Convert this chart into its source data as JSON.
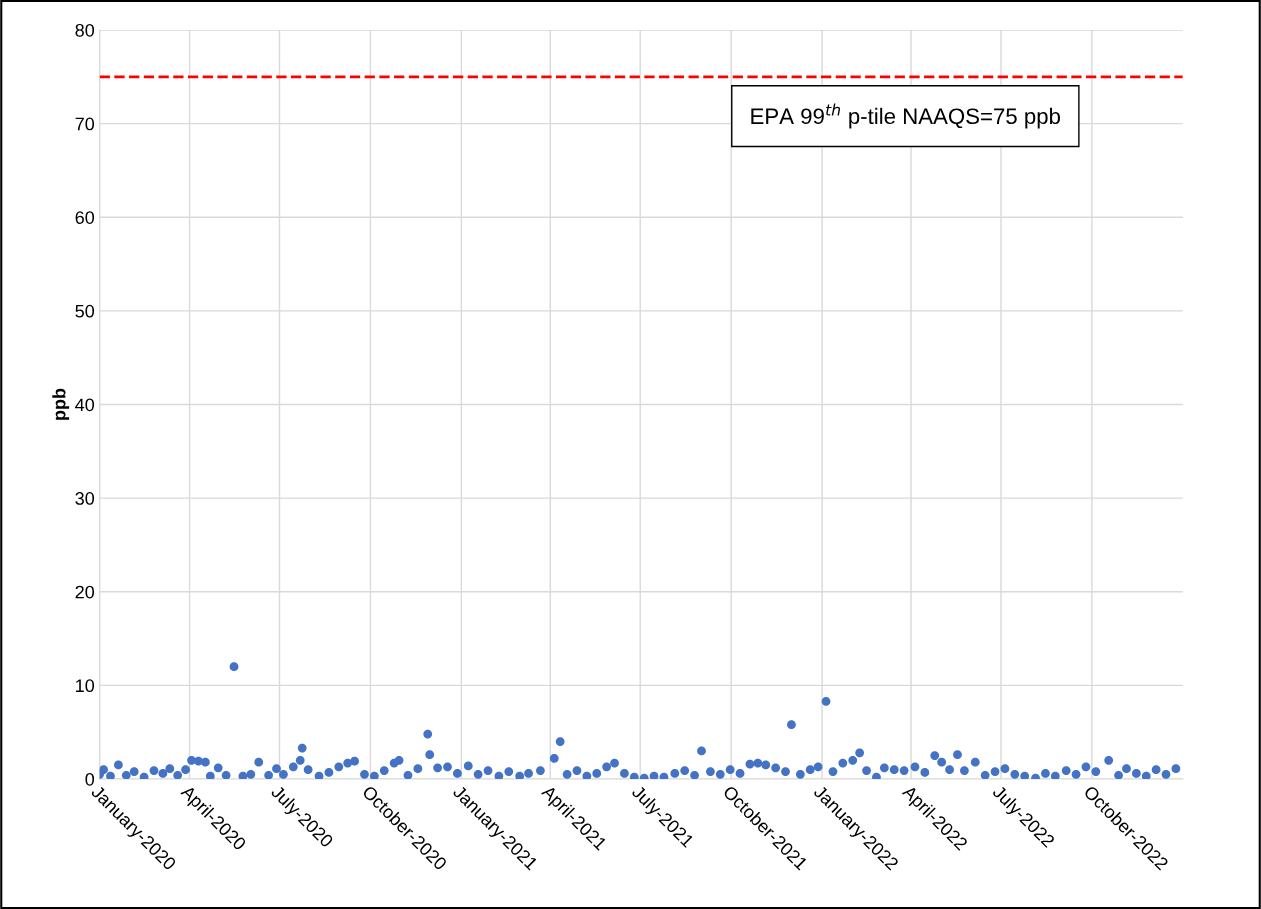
{
  "chart_data": {
    "type": "scatter",
    "ylabel": "ppb",
    "color": "#4472c4",
    "marker": "circle",
    "grid": true,
    "legend": false,
    "xlim": [
      "2020-01-01",
      "2023-01-01"
    ],
    "ylim": [
      0,
      80
    ],
    "yticks": [
      0,
      10,
      20,
      30,
      40,
      50,
      60,
      70,
      80
    ],
    "xticks": [
      {
        "value": "2020-01-01",
        "label": "January-2020"
      },
      {
        "value": "2020-04-01",
        "label": "April-2020"
      },
      {
        "value": "2020-07-01",
        "label": "July-2020"
      },
      {
        "value": "2020-10-01",
        "label": "October-2020"
      },
      {
        "value": "2021-01-01",
        "label": "January-2021"
      },
      {
        "value": "2021-04-01",
        "label": "April-2021"
      },
      {
        "value": "2021-07-01",
        "label": "July-2021"
      },
      {
        "value": "2021-10-01",
        "label": "October-2021"
      },
      {
        "value": "2022-01-01",
        "label": "January-2022"
      },
      {
        "value": "2022-04-01",
        "label": "April-2022"
      },
      {
        "value": "2022-07-01",
        "label": "July-2022"
      },
      {
        "value": "2022-10-01",
        "label": "October-2022"
      }
    ],
    "ref_lines": [
      {
        "axis": "y",
        "value": 75,
        "label": "EPA 99$^{th}$ p-tile NAAQS=75 ppb",
        "color": "#ff0000",
        "line_style": "dashed"
      }
    ],
    "x": [
      "2020-01-01",
      "2020-01-05",
      "2020-01-12",
      "2020-01-20",
      "2020-01-28",
      "2020-02-05",
      "2020-02-15",
      "2020-02-25",
      "2020-03-05",
      "2020-03-12",
      "2020-03-20",
      "2020-03-28",
      "2020-04-03",
      "2020-04-10",
      "2020-04-17",
      "2020-04-22",
      "2020-04-30",
      "2020-05-08",
      "2020-05-16",
      "2020-05-25",
      "2020-06-02",
      "2020-06-10",
      "2020-06-20",
      "2020-06-28",
      "2020-07-05",
      "2020-07-15",
      "2020-07-22",
      "2020-07-24",
      "2020-07-30",
      "2020-08-10",
      "2020-08-20",
      "2020-08-30",
      "2020-09-08",
      "2020-09-15",
      "2020-09-25",
      "2020-10-05",
      "2020-10-15",
      "2020-10-25",
      "2020-10-30",
      "2020-11-08",
      "2020-11-18",
      "2020-11-28",
      "2020-11-30",
      "2020-12-08",
      "2020-12-18",
      "2020-12-28",
      "2021-01-08",
      "2021-01-18",
      "2021-01-28",
      "2021-02-08",
      "2021-02-18",
      "2021-03-01",
      "2021-03-10",
      "2021-03-22",
      "2021-04-05",
      "2021-04-11",
      "2021-04-18",
      "2021-04-28",
      "2021-05-08",
      "2021-05-18",
      "2021-05-28",
      "2021-06-05",
      "2021-06-15",
      "2021-06-25",
      "2021-07-05",
      "2021-07-15",
      "2021-07-25",
      "2021-08-05",
      "2021-08-15",
      "2021-08-25",
      "2021-09-01",
      "2021-09-10",
      "2021-09-20",
      "2021-09-30",
      "2021-10-10",
      "2021-10-20",
      "2021-10-28",
      "2021-11-05",
      "2021-11-15",
      "2021-11-25",
      "2021-12-01",
      "2021-12-10",
      "2021-12-20",
      "2021-12-28",
      "2022-01-05",
      "2022-01-12",
      "2022-01-22",
      "2022-02-01",
      "2022-02-08",
      "2022-02-15",
      "2022-02-25",
      "2022-03-05",
      "2022-03-15",
      "2022-03-25",
      "2022-04-05",
      "2022-04-15",
      "2022-04-25",
      "2022-05-02",
      "2022-05-10",
      "2022-05-18",
      "2022-05-25",
      "2022-06-05",
      "2022-06-15",
      "2022-06-25",
      "2022-07-05",
      "2022-07-15",
      "2022-07-25",
      "2022-08-05",
      "2022-08-15",
      "2022-08-25",
      "2022-09-05",
      "2022-09-15",
      "2022-09-25",
      "2022-10-05",
      "2022-10-18",
      "2022-10-28",
      "2022-11-05",
      "2022-11-15",
      "2022-11-25",
      "2022-12-05",
      "2022-12-15",
      "2022-12-25"
    ],
    "values": [
      0.5,
      1.0,
      0.3,
      1.5,
      0.4,
      0.8,
      0.2,
      0.9,
      0.6,
      1.1,
      0.4,
      1.0,
      2.0,
      1.9,
      1.8,
      0.3,
      1.2,
      0.4,
      12.0,
      0.3,
      0.5,
      1.8,
      0.4,
      1.1,
      0.5,
      1.3,
      2.0,
      3.3,
      1.0,
      0.3,
      0.7,
      1.3,
      1.7,
      1.9,
      0.5,
      0.3,
      0.9,
      1.7,
      2.0,
      0.4,
      1.1,
      4.8,
      2.6,
      1.2,
      1.3,
      0.6,
      1.4,
      0.5,
      0.9,
      0.3,
      0.8,
      0.3,
      0.6,
      0.9,
      2.2,
      4.0,
      0.5,
      0.9,
      0.3,
      0.6,
      1.3,
      1.7,
      0.6,
      0.2,
      0.1,
      0.3,
      0.2,
      0.6,
      0.9,
      0.4,
      3.0,
      0.8,
      0.5,
      1.0,
      0.6,
      1.6,
      1.7,
      1.5,
      1.2,
      0.8,
      5.8,
      0.5,
      1.0,
      1.3,
      8.3,
      0.8,
      1.7,
      2.0,
      2.8,
      0.9,
      0.2,
      1.2,
      1.0,
      0.9,
      1.3,
      0.7,
      2.5,
      1.8,
      1.0,
      2.6,
      0.9,
      1.8,
      0.4,
      0.8,
      1.1,
      0.5,
      0.3,
      0.1,
      0.6,
      0.3,
      0.9,
      0.5,
      1.3,
      0.8,
      2.0,
      0.4,
      1.1,
      0.6,
      0.3,
      1.0,
      0.5,
      1.1
    ]
  }
}
